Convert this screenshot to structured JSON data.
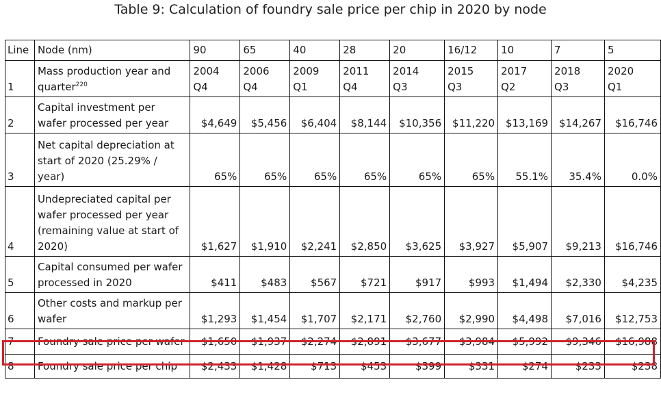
{
  "title": "Table 9: Calculation of foundry sale price per chip in 2020 by node",
  "header": {
    "line": "Line",
    "node": "Node (nm)",
    "nodes": [
      "90",
      "65",
      "40",
      "28",
      "20",
      "16/12",
      "10",
      "7",
      "5"
    ]
  },
  "rows": [
    {
      "line": "1",
      "label": "Mass production year and quarter",
      "footnote": "220",
      "values": [
        [
          "2004",
          "Q4"
        ],
        [
          "2006",
          "Q4"
        ],
        [
          "2009",
          "Q1"
        ],
        [
          "2011",
          "Q4"
        ],
        [
          "2014",
          "Q3"
        ],
        [
          "2015",
          "Q3"
        ],
        [
          "2017",
          "Q2"
        ],
        [
          "2018",
          "Q3"
        ],
        [
          "2020",
          "Q1"
        ]
      ]
    },
    {
      "line": "2",
      "label": "Capital investment per wafer processed per year",
      "values": [
        "$4,649",
        "$5,456",
        "$6,404",
        "$8,144",
        "$10,356",
        "$11,220",
        "$13,169",
        "$14,267",
        "$16,746"
      ]
    },
    {
      "line": "3",
      "label": "Net capital depreciation at start of 2020 (25.29% / year)",
      "values": [
        "65%",
        "65%",
        "65%",
        "65%",
        "65%",
        "65%",
        "55.1%",
        "35.4%",
        "0.0%"
      ]
    },
    {
      "line": "4",
      "label": "Undepreciated capital per wafer processed per year (remaining value at start of 2020)",
      "values": [
        "$1,627",
        "$1,910",
        "$2,241",
        "$2,850",
        "$3,625",
        "$3,927",
        "$5,907",
        "$9,213",
        "$16,746"
      ]
    },
    {
      "line": "5",
      "label": "Capital consumed per wafer processed in 2020",
      "values": [
        "$411",
        "$483",
        "$567",
        "$721",
        "$917",
        "$993",
        "$1,494",
        "$2,330",
        "$4,235"
      ]
    },
    {
      "line": "6",
      "label": "Other costs and markup per wafer",
      "values": [
        "$1,293",
        "$1,454",
        "$1,707",
        "$2,171",
        "$2,760",
        "$2,990",
        "$4,498",
        "$7,016",
        "$12,753"
      ]
    },
    {
      "line": "7",
      "label": "Foundry sale price per wafer",
      "values": [
        "$1,650",
        "$1,937",
        "$2,274",
        "$2,891",
        "$3,677",
        "$3,984",
        "$5,992",
        "$9,346",
        "$16,988"
      ],
      "highlighted": true
    },
    {
      "line": "8",
      "label": "Foundry sale price per chip",
      "values": [
        "$2,433",
        "$1,428",
        "$713",
        "$453",
        "$399",
        "$331",
        "$274",
        "$233",
        "$238"
      ]
    }
  ],
  "colors": {
    "highlight": "#d0202a",
    "border": "#111111"
  }
}
